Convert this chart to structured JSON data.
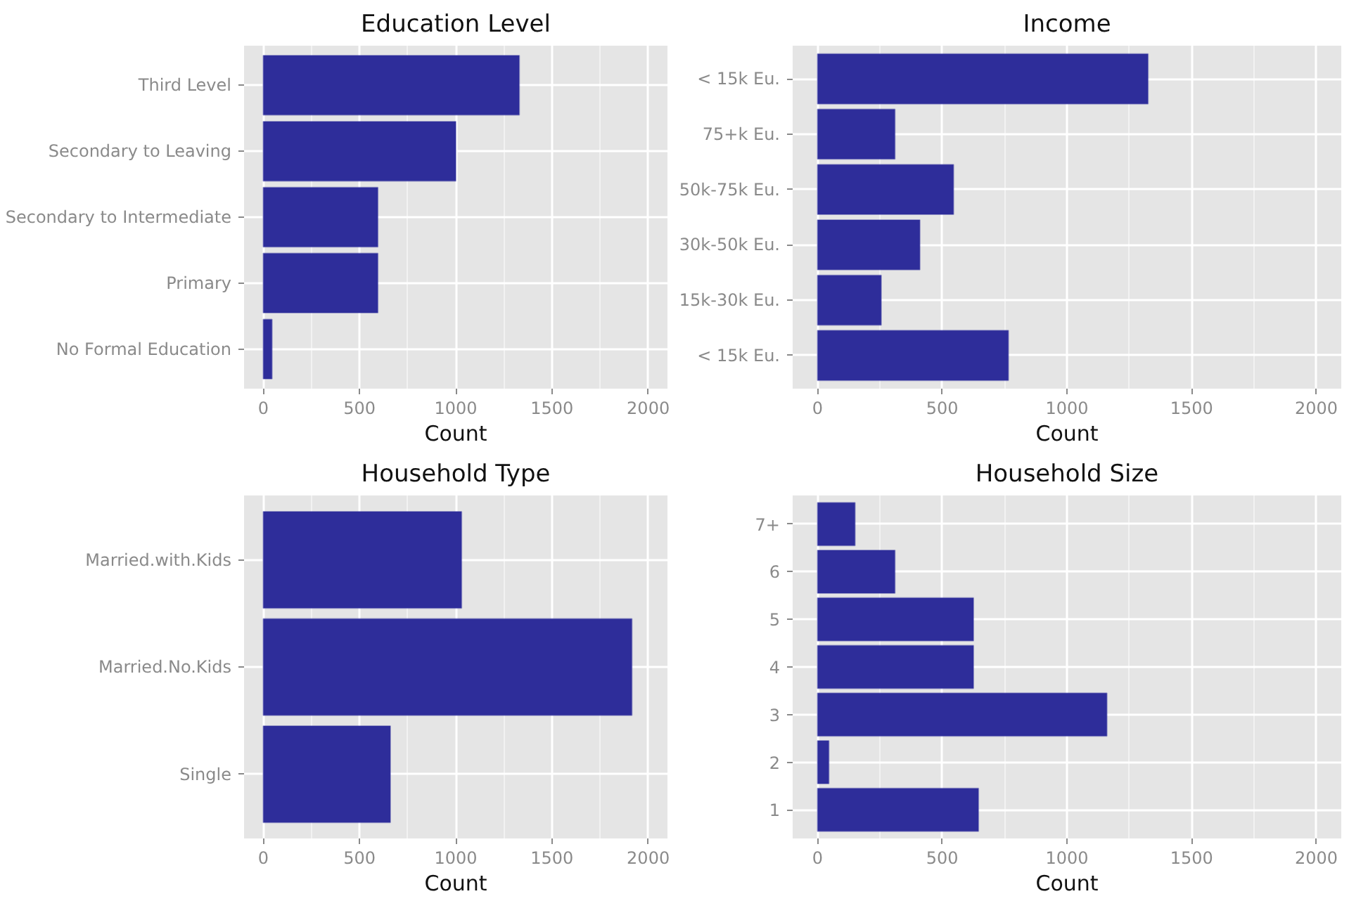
{
  "chart_data": [
    {
      "type": "bar",
      "orientation": "horizontal",
      "title": "Education Level",
      "xlabel": "Count",
      "categories": [
        "Third Level",
        "Secondary to Leaving",
        "Secondary to Intermediate",
        "Primary",
        "No Formal Education"
      ],
      "values": [
        1330,
        1000,
        595,
        595,
        45
      ],
      "color": "#2e2d9a",
      "xlim": [
        -100,
        2100
      ],
      "xticks": [
        0,
        500,
        1000,
        1500,
        2000
      ],
      "grid": true
    },
    {
      "type": "bar",
      "orientation": "horizontal",
      "title": "Income",
      "xlabel": "Count",
      "categories": [
        "< 15k Eu.",
        "75+k Eu.",
        "50k-75k Eu.",
        "30k-50k Eu.",
        "15k-30k Eu.",
        "< 15k Eu."
      ],
      "values": [
        1325,
        310,
        545,
        410,
        255,
        765
      ],
      "color": "#2e2d9a",
      "xlim": [
        -100,
        2100
      ],
      "xticks": [
        0,
        500,
        1000,
        1500,
        2000
      ],
      "grid": true
    },
    {
      "type": "bar",
      "orientation": "horizontal",
      "title": "Household Type",
      "xlabel": "Count",
      "categories": [
        "Married.with.Kids",
        "Married.No.Kids",
        "Single"
      ],
      "values": [
        1030,
        1915,
        660
      ],
      "color": "#2e2d9a",
      "xlim": [
        -100,
        2100
      ],
      "xticks": [
        0,
        500,
        1000,
        1500,
        2000
      ],
      "grid": true
    },
    {
      "type": "bar",
      "orientation": "horizontal",
      "title": "Household Size",
      "xlabel": "Count",
      "categories": [
        "7+",
        "6",
        "5",
        "4",
        "3",
        "2",
        "1"
      ],
      "values": [
        150,
        310,
        625,
        625,
        1160,
        45,
        645
      ],
      "color": "#2e2d9a",
      "xlim": [
        -100,
        2100
      ],
      "xticks": [
        0,
        500,
        1000,
        1500,
        2000
      ],
      "grid": true
    }
  ]
}
